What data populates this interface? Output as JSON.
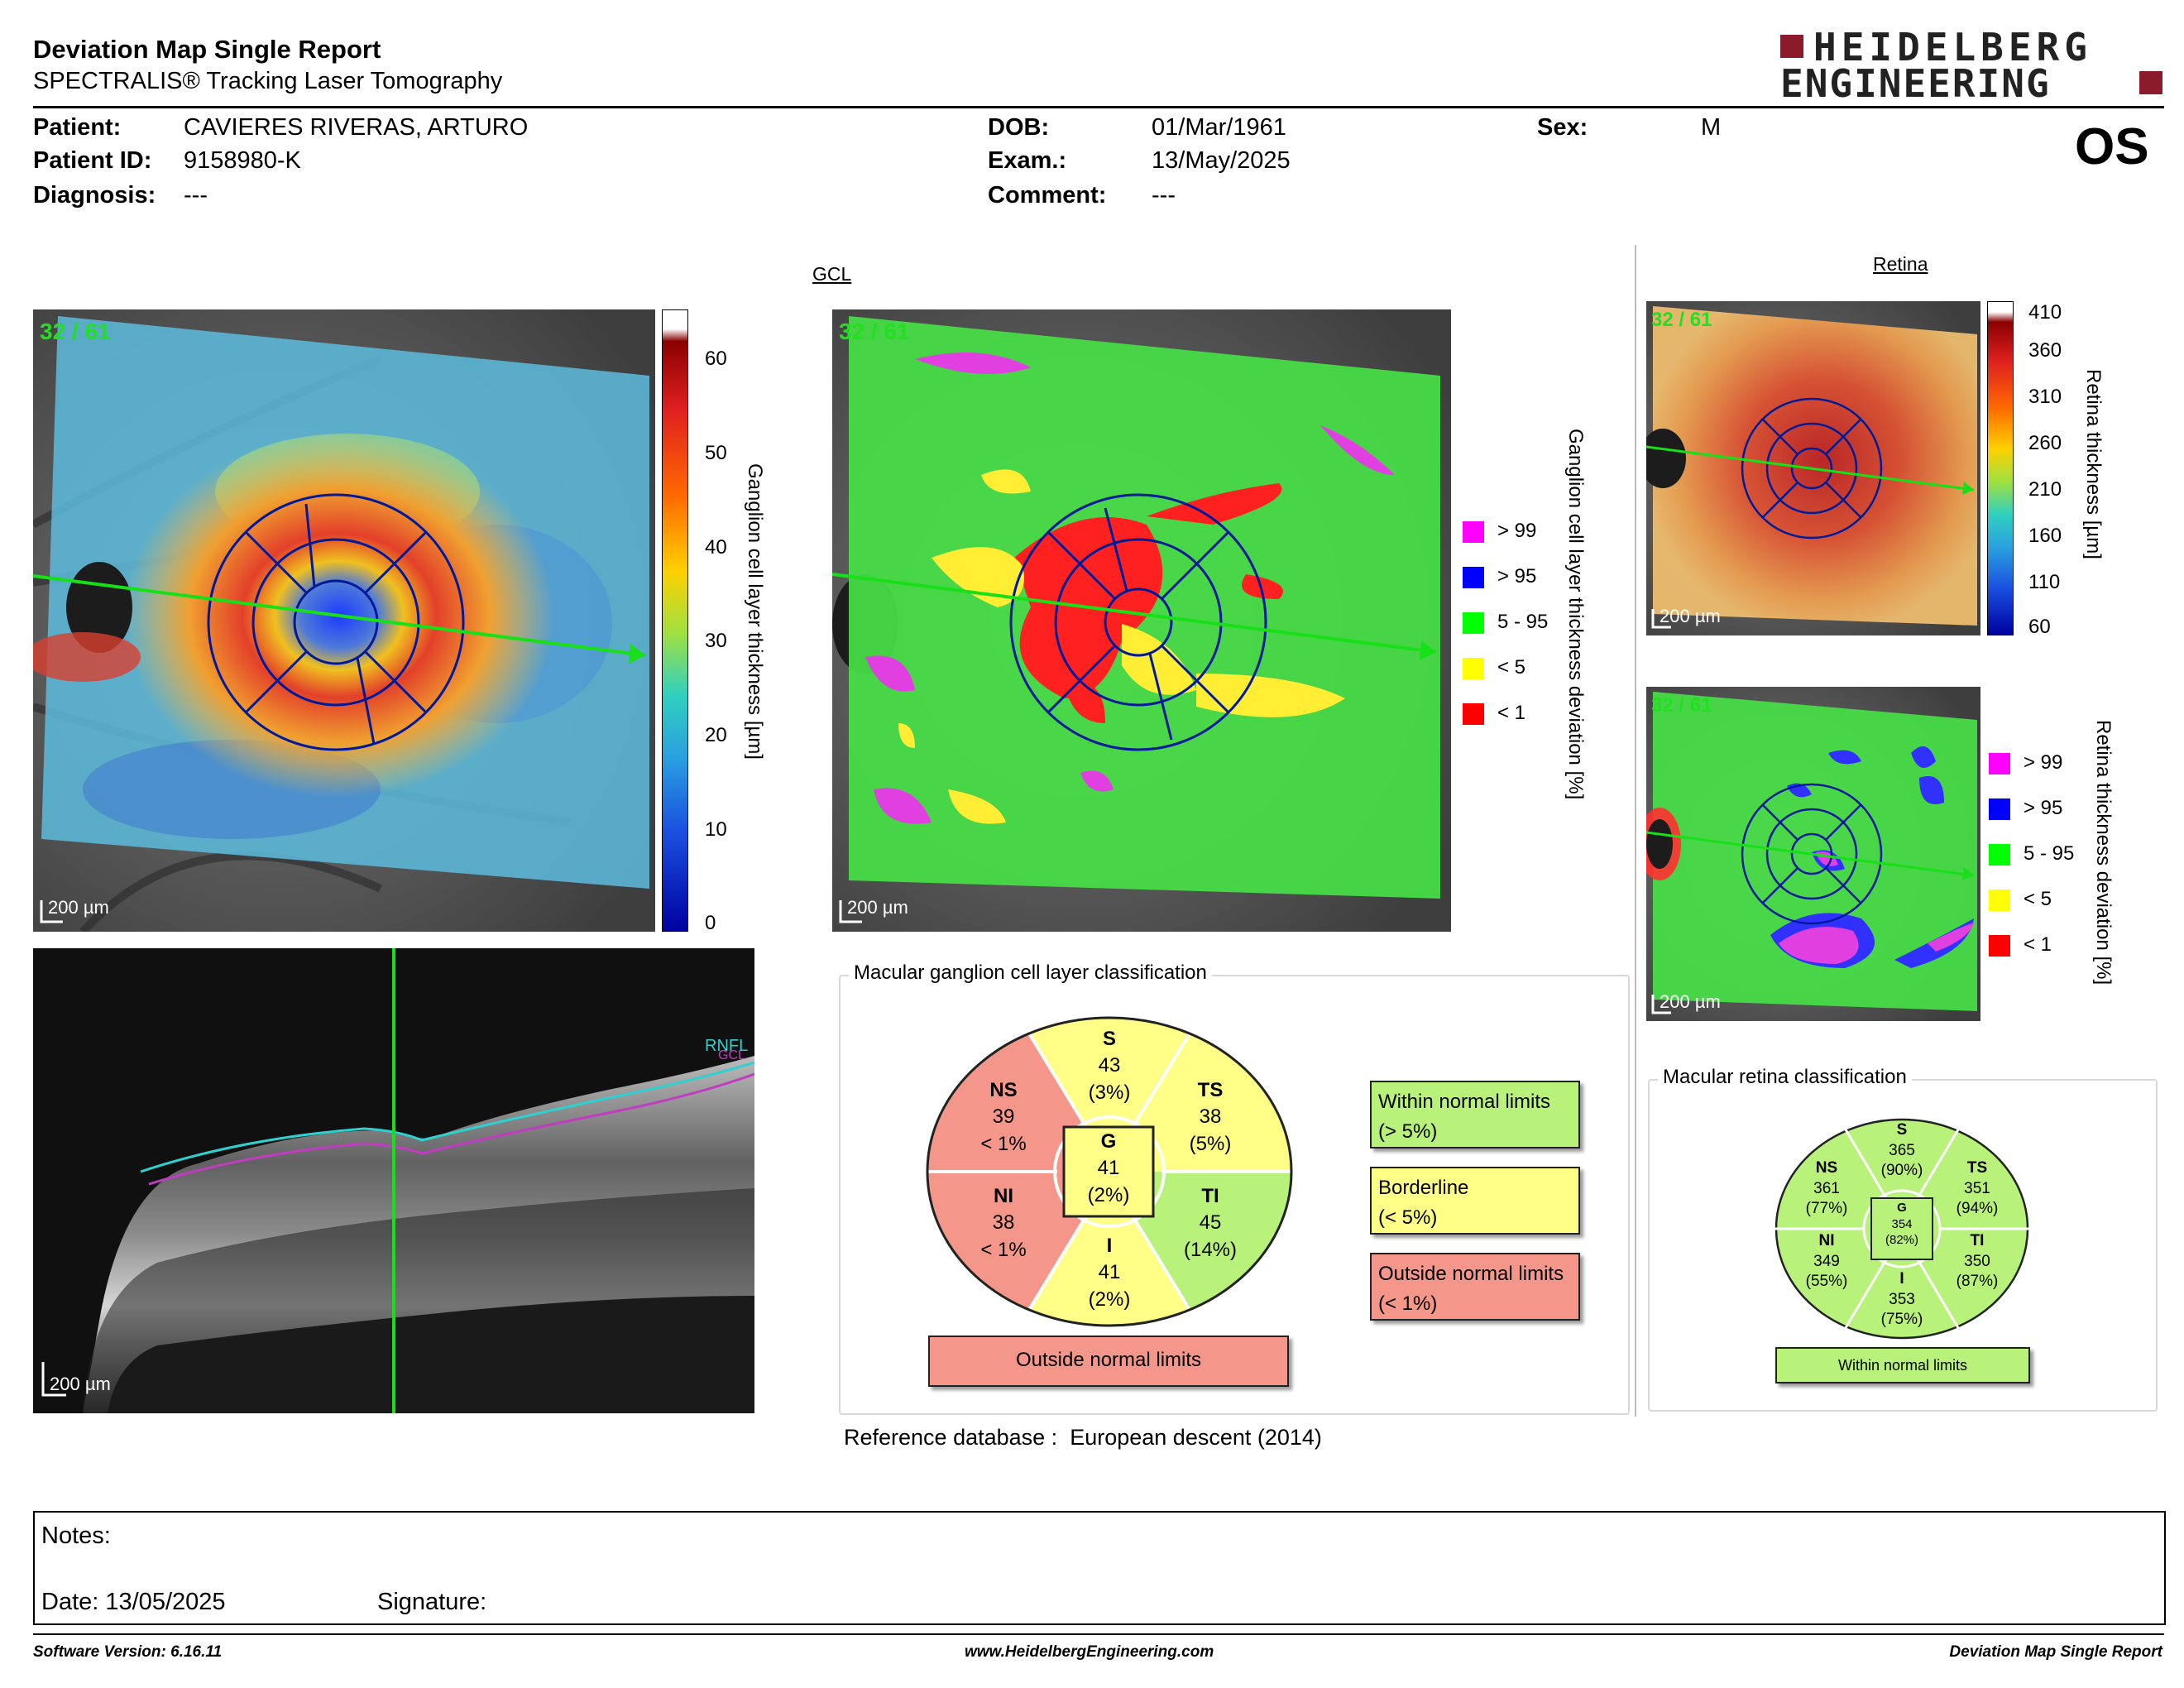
{
  "header": {
    "title": "Deviation Map Single Report",
    "subtitle": "SPECTRALIS® Tracking Laser Tomography",
    "logo_line1": "HEIDELBERG",
    "logo_line2": "ENGINEERING",
    "eye": "OS"
  },
  "patient": {
    "patient_label": "Patient:",
    "patient_value": "CAVIERES RIVERAS, ARTURO",
    "id_label": "Patient ID:",
    "id_value": "9158980-K",
    "diagnosis_label": "Diagnosis:",
    "diagnosis_value": "---",
    "dob_label": "DOB:",
    "dob_value": "01/Mar/1961",
    "exam_label": "Exam.:",
    "exam_value": "13/May/2025",
    "comment_label": "Comment:",
    "comment_value": "---",
    "sex_label": "Sex:",
    "sex_value": "M"
  },
  "gcl": {
    "section_label": "GCL",
    "scan_label": "32 / 61",
    "scale_label": "200 µm",
    "colorbar_title": "Ganglion cell layer thickness [µm]",
    "colorbar_ticks": [
      "60",
      "50",
      "40",
      "30",
      "20",
      "10",
      "0"
    ],
    "deviation_title": "Ganglion cell layer thickness deviation [%]",
    "legend": [
      {
        "label": "> 99",
        "color": "#ff00ff"
      },
      {
        "label": "> 95",
        "color": "#0000ff"
      },
      {
        "label": "5 - 95",
        "color": "#00ff00"
      },
      {
        "label": "< 5",
        "color": "#ffff00"
      },
      {
        "label": "< 1",
        "color": "#ff0000"
      }
    ]
  },
  "bscan": {
    "scale_label": "200 µm",
    "rnfl_label": "RNFL",
    "gcl_label": "GCL"
  },
  "retina": {
    "section_label": "Retina",
    "scan_label": "32 / 61",
    "scale_label": "200 µm",
    "colorbar_title": "Retina thickness [µm]",
    "colorbar_ticks": [
      "410",
      "360",
      "310",
      "260",
      "210",
      "160",
      "110",
      "60"
    ],
    "deviation_title": "Retina thickness deviation [%]",
    "legend": [
      {
        "label": "> 99",
        "color": "#ff00ff"
      },
      {
        "label": "> 95",
        "color": "#0000ff"
      },
      {
        "label": "5 - 95",
        "color": "#00ff00"
      },
      {
        "label": "< 5",
        "color": "#ffff00"
      },
      {
        "label": "< 1",
        "color": "#ff0000"
      }
    ]
  },
  "gcl_classification": {
    "title": "Macular ganglion cell layer classification",
    "sectors": {
      "S": {
        "name": "S",
        "value": "43",
        "pct": "(3%)"
      },
      "NS": {
        "name": "NS",
        "value": "39",
        "pct": "< 1%"
      },
      "TS": {
        "name": "TS",
        "value": "38",
        "pct": "(5%)"
      },
      "NI": {
        "name": "NI",
        "value": "38",
        "pct": "< 1%"
      },
      "TI": {
        "name": "TI",
        "value": "45",
        "pct": "(14%)"
      },
      "I": {
        "name": "I",
        "value": "41",
        "pct": "(2%)"
      },
      "G": {
        "name": "G",
        "value": "41",
        "pct": "(2%)"
      }
    },
    "result": "Outside normal limits",
    "key_normal_1": "Within normal limits",
    "key_normal_2": "(> 5%)",
    "key_border_1": "Borderline",
    "key_border_2": "(< 5%)",
    "key_outside_1": "Outside normal limits",
    "key_outside_2": "(< 1%)",
    "reference_label": "Reference database :",
    "reference_value": "European descent (2014)"
  },
  "retina_classification": {
    "title": "Macular retina classification",
    "sectors": {
      "S": {
        "name": "S",
        "value": "365",
        "pct": "(90%)"
      },
      "NS": {
        "name": "NS",
        "value": "361",
        "pct": "(77%)"
      },
      "TS": {
        "name": "TS",
        "value": "351",
        "pct": "(94%)"
      },
      "NI": {
        "name": "NI",
        "value": "349",
        "pct": "(55%)"
      },
      "TI": {
        "name": "TI",
        "value": "350",
        "pct": "(87%)"
      },
      "I": {
        "name": "I",
        "value": "353",
        "pct": "(75%)"
      },
      "G": {
        "name": "G",
        "value": "354",
        "pct": "(82%)"
      }
    },
    "result": "Within normal limits"
  },
  "notes": {
    "notes_label": "Notes:",
    "date_label": "Date: 13/05/2025",
    "signature_label": "Signature:"
  },
  "footer": {
    "software": "Software Version: 6.16.11",
    "website": "www.HeidelbergEngineering.com",
    "report": "Deviation Map Single Report"
  },
  "colors": {
    "outside": "#f4978a",
    "borderline": "#ffff88",
    "normal": "#b8f27a",
    "logo": "#8b1a2a"
  }
}
